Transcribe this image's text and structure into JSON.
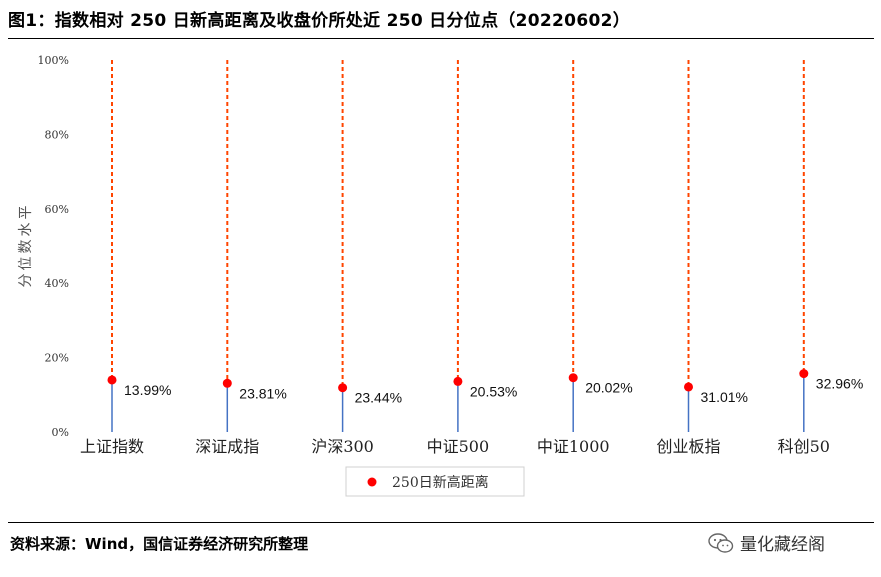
{
  "header": {
    "title": "图1：指数相对 250 日新高距离及收盘价所处近 250 日分位点（20220602）"
  },
  "footer": {
    "source": "资料来源：Wind，国信证券经济研究所整理",
    "watermark": "量化藏经阁",
    "watermark_icon": "wechat-icon"
  },
  "chart_data": {
    "type": "scatter",
    "categories": [
      "上证指数",
      "深证成指",
      "沪深300",
      "中证500",
      "中证1000",
      "创业板指",
      "科创50"
    ],
    "series": [
      {
        "name": "250日新高距离",
        "values": [
          13.99,
          13.1,
          11.9,
          13.6,
          14.6,
          12.1,
          15.7
        ],
        "color": "#ff0000"
      }
    ],
    "data_labels": [
      "13.99%",
      "23.81%",
      "23.44%",
      "20.53%",
      "20.02%",
      "31.01%",
      "32.96%"
    ],
    "ylabel": "分位数水平",
    "ylim": [
      0,
      100
    ],
    "yticks": [
      0,
      20,
      40,
      60,
      80,
      100
    ],
    "ytick_labels": [
      "0%",
      "20%",
      "40%",
      "60%",
      "80%",
      "100%"
    ],
    "stem_color": "#4472c4",
    "dashed_line_color": "#ff4500",
    "grid": false,
    "legend_position": "bottom-center"
  }
}
